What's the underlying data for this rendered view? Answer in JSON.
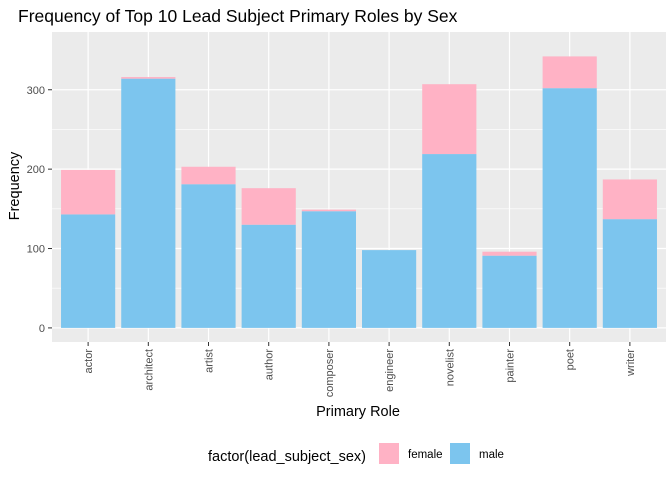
{
  "colors": {
    "panel_background": "#ebebeb",
    "grid_major": "#ffffff",
    "female": "#ffb2c5",
    "male": "#7cc5ee"
  },
  "chart_data": {
    "type": "bar",
    "stacked": true,
    "title": "Frequency of Top 10 Lead Subject Primary Roles by Sex",
    "xlabel": "Primary Role",
    "ylabel": "Frequency",
    "ylim": [
      0,
      355
    ],
    "yticks": [
      0,
      100,
      200,
      300
    ],
    "ytick_labels": [
      "0",
      "100",
      "200",
      "300"
    ],
    "categories": [
      "actor",
      "architect",
      "artist",
      "author",
      "composer",
      "engineer",
      "novelist",
      "painter",
      "poet",
      "writer"
    ],
    "series": [
      {
        "name": "male",
        "values": [
          143,
          314,
          181,
          130,
          147,
          98,
          219,
          91,
          302,
          137
        ]
      },
      {
        "name": "female",
        "values": [
          56,
          2,
          22,
          46,
          2,
          0,
          88,
          5,
          40,
          50
        ]
      }
    ],
    "legend": {
      "title": "factor(lead_subject_sex)",
      "position": "bottom",
      "entries": [
        {
          "label": "female",
          "color": "#ffb2c5"
        },
        {
          "label": "male",
          "color": "#7cc5ee"
        }
      ]
    },
    "grid": true
  }
}
